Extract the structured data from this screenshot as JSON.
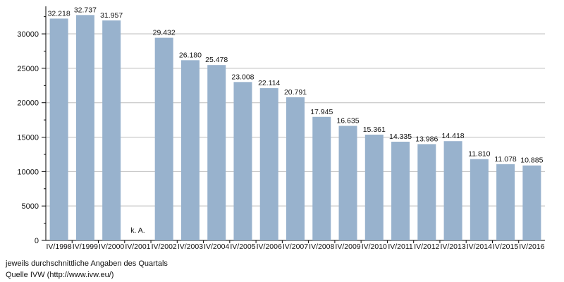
{
  "chart_data": {
    "type": "bar",
    "categories": [
      "IV/1998",
      "IV/1999",
      "IV/2000",
      "IV/2001",
      "IV/2002",
      "IV/2003",
      "IV/2004",
      "IV/2005",
      "IV/2006",
      "IV/2007",
      "IV/2008",
      "IV/2009",
      "IV/2010",
      "IV/2011",
      "IV/2012",
      "IV/2013",
      "IV/2014",
      "IV/2015",
      "IV/2016"
    ],
    "values": [
      32218,
      32737,
      31957,
      null,
      29432,
      26180,
      25478,
      23008,
      22114,
      20791,
      17945,
      16635,
      15361,
      14335,
      13986,
      14418,
      11810,
      11078,
      10885
    ],
    "value_labels": [
      "32.218",
      "32.737",
      "31.957",
      "k. A.",
      "29.432",
      "26.180",
      "25.478",
      "23.008",
      "22.114",
      "20.791",
      "17.945",
      "16.635",
      "15.361",
      "14.335",
      "13.986",
      "14.418",
      "11.810",
      "11.078",
      "10.885"
    ],
    "yticks": [
      "0",
      "5000",
      "10000",
      "15000",
      "20000",
      "25000",
      "30000"
    ],
    "ylim": [
      0,
      34000
    ],
    "grid": true,
    "bar_color": "#98b2cd",
    "title": "",
    "xlabel": "",
    "ylabel": ""
  },
  "notes": {
    "line1": "jeweils durchschnittliche Angaben des Quartals",
    "line2": "Quelle IVW (http://www.ivw.eu/)"
  }
}
